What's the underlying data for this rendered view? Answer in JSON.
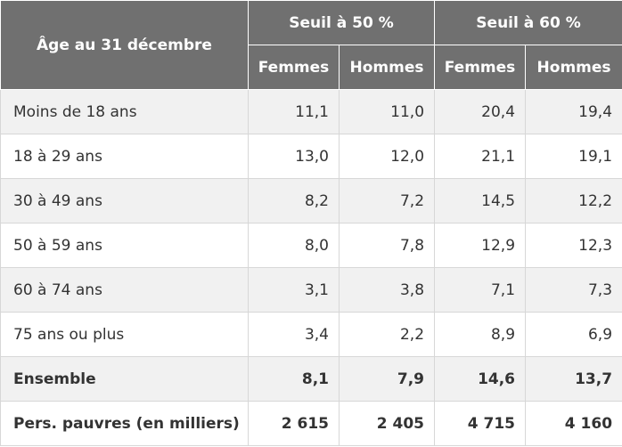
{
  "header": {
    "age_label": "Âge au 31 décembre",
    "groups": [
      "Seuil à 50 %",
      "Seuil à 60 %"
    ],
    "subheaders": [
      "Femmes",
      "Hommes",
      "Femmes",
      "Hommes"
    ]
  },
  "rows": [
    {
      "label": "Moins de 18 ans",
      "values": [
        "11,1",
        "11,0",
        "20,4",
        "19,4"
      ]
    },
    {
      "label": "18 à 29 ans",
      "values": [
        "13,0",
        "12,0",
        "21,1",
        "19,1"
      ]
    },
    {
      "label": "30 à 49 ans",
      "values": [
        "8,2",
        "7,2",
        "14,5",
        "12,2"
      ]
    },
    {
      "label": "50 à 59 ans",
      "values": [
        "8,0",
        "7,8",
        "12,9",
        "12,3"
      ]
    },
    {
      "label": "60 à 74 ans",
      "values": [
        "3,1",
        "3,8",
        "7,1",
        "7,3"
      ]
    },
    {
      "label": "75 ans ou plus",
      "values": [
        "3,4",
        "2,2",
        "8,9",
        "6,9"
      ]
    },
    {
      "label": "Ensemble",
      "values": [
        "8,1",
        "7,9",
        "14,6",
        "13,7"
      ]
    },
    {
      "label": "Pers. pauvres (en milliers)",
      "values": [
        "2 615",
        "2 405",
        "4 715",
        "4 160"
      ]
    }
  ]
}
